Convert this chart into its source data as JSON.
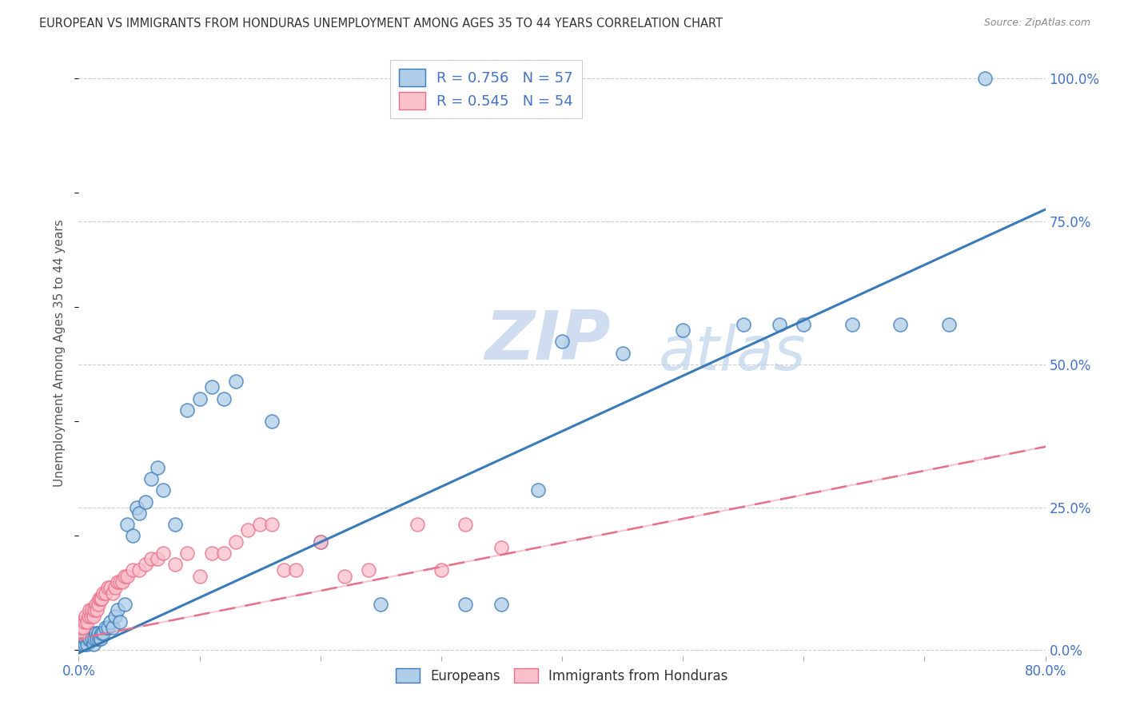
{
  "title": "EUROPEAN VS IMMIGRANTS FROM HONDURAS UNEMPLOYMENT AMONG AGES 35 TO 44 YEARS CORRELATION CHART",
  "source": "Source: ZipAtlas.com",
  "ylabel": "Unemployment Among Ages 35 to 44 years",
  "xlim": [
    0.0,
    0.8
  ],
  "ylim": [
    -0.01,
    1.05
  ],
  "ytick_labels_right": [
    "0.0%",
    "25.0%",
    "50.0%",
    "75.0%",
    "100.0%"
  ],
  "ytick_vals_right": [
    0.0,
    0.25,
    0.5,
    0.75,
    1.0
  ],
  "grid_color": "#cccccc",
  "background_color": "#ffffff",
  "watermark": "ZIPatlas",
  "legend_R1": "0.756",
  "legend_N1": "57",
  "legend_R2": "0.545",
  "legend_N2": "54",
  "series1_color": "#aecde8",
  "series2_color": "#f9c0cb",
  "line1_color": "#3a7ab8",
  "line2_color": "#e8718a",
  "title_color": "#333333",
  "blue_text_color": "#4472c4",
  "axis_label_color": "#4472c4",
  "line1_slope": 0.97,
  "line1_intercept": -0.005,
  "line2_slope": 0.42,
  "line2_intercept": 0.02,
  "europeans_x": [
    0.002,
    0.003,
    0.004,
    0.005,
    0.006,
    0.007,
    0.008,
    0.009,
    0.01,
    0.011,
    0.012,
    0.013,
    0.014,
    0.015,
    0.016,
    0.017,
    0.018,
    0.019,
    0.02,
    0.022,
    0.024,
    0.026,
    0.028,
    0.03,
    0.032,
    0.034,
    0.038,
    0.04,
    0.045,
    0.048,
    0.05,
    0.055,
    0.06,
    0.065,
    0.07,
    0.08,
    0.09,
    0.1,
    0.11,
    0.12,
    0.13,
    0.16,
    0.2,
    0.25,
    0.32,
    0.35,
    0.38,
    0.4,
    0.45,
    0.5,
    0.55,
    0.58,
    0.6,
    0.64,
    0.68,
    0.72,
    0.75
  ],
  "europeans_y": [
    0.01,
    0.01,
    0.02,
    0.01,
    0.02,
    0.01,
    0.02,
    0.02,
    0.03,
    0.02,
    0.01,
    0.02,
    0.03,
    0.02,
    0.03,
    0.02,
    0.02,
    0.03,
    0.03,
    0.04,
    0.04,
    0.05,
    0.04,
    0.06,
    0.07,
    0.05,
    0.08,
    0.22,
    0.2,
    0.25,
    0.24,
    0.26,
    0.3,
    0.32,
    0.28,
    0.22,
    0.42,
    0.44,
    0.46,
    0.44,
    0.47,
    0.4,
    0.19,
    0.08,
    0.08,
    0.08,
    0.28,
    0.54,
    0.52,
    0.56,
    0.57,
    0.57,
    0.57,
    0.57,
    0.57,
    0.57,
    1.0
  ],
  "honduras_x": [
    0.001,
    0.002,
    0.003,
    0.004,
    0.005,
    0.006,
    0.007,
    0.008,
    0.009,
    0.01,
    0.011,
    0.012,
    0.013,
    0.014,
    0.015,
    0.016,
    0.017,
    0.018,
    0.019,
    0.02,
    0.022,
    0.024,
    0.026,
    0.028,
    0.03,
    0.032,
    0.034,
    0.036,
    0.038,
    0.04,
    0.045,
    0.05,
    0.055,
    0.06,
    0.065,
    0.07,
    0.08,
    0.09,
    0.1,
    0.11,
    0.12,
    0.13,
    0.14,
    0.15,
    0.16,
    0.17,
    0.18,
    0.2,
    0.22,
    0.24,
    0.28,
    0.3,
    0.32,
    0.35
  ],
  "honduras_y": [
    0.03,
    0.04,
    0.05,
    0.04,
    0.05,
    0.06,
    0.05,
    0.06,
    0.07,
    0.06,
    0.07,
    0.06,
    0.07,
    0.08,
    0.07,
    0.08,
    0.09,
    0.09,
    0.09,
    0.1,
    0.1,
    0.11,
    0.11,
    0.1,
    0.11,
    0.12,
    0.12,
    0.12,
    0.13,
    0.13,
    0.14,
    0.14,
    0.15,
    0.16,
    0.16,
    0.17,
    0.15,
    0.17,
    0.13,
    0.17,
    0.17,
    0.19,
    0.21,
    0.22,
    0.22,
    0.14,
    0.14,
    0.19,
    0.13,
    0.14,
    0.22,
    0.14,
    0.22,
    0.18
  ]
}
